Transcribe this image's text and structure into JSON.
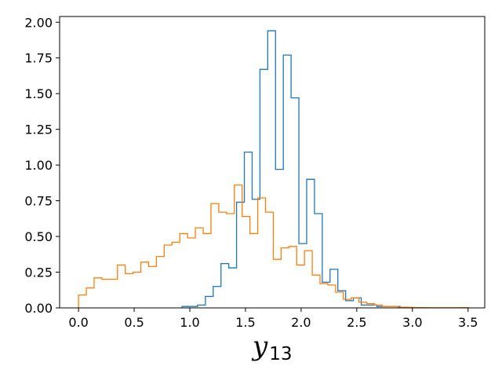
{
  "chart_data": {
    "type": "step-histogram",
    "xlabel": "y",
    "xlabel_subscript": "13",
    "ylabel": "",
    "title": "",
    "grid": false,
    "legend": "none",
    "xlim": [
      -0.17,
      3.65
    ],
    "ylim": [
      0,
      2.04
    ],
    "xticks": [
      0.0,
      0.5,
      1.0,
      1.5,
      2.0,
      2.5,
      3.0,
      3.5
    ],
    "xtick_labels": [
      "0.0",
      "0.5",
      "1.0",
      "1.5",
      "2.0",
      "2.5",
      "3.0",
      "3.5"
    ],
    "yticks": [
      0.0,
      0.25,
      0.5,
      0.75,
      1.0,
      1.25,
      1.5,
      1.75,
      2.0
    ],
    "ytick_labels": [
      "0.00",
      "0.25",
      "0.50",
      "0.75",
      "1.00",
      "1.25",
      "1.50",
      "1.75",
      "2.00"
    ],
    "series": [
      {
        "color": "#1f77b4",
        "edges": [
          0.93,
          1.0,
          1.07,
          1.14,
          1.21,
          1.28,
          1.35,
          1.42,
          1.49,
          1.56,
          1.63,
          1.7,
          1.77,
          1.84,
          1.91,
          1.98,
          2.05,
          2.12,
          2.19,
          2.26,
          2.33,
          2.4,
          2.47,
          2.54,
          2.61,
          2.68,
          2.75,
          2.82,
          2.89,
          2.96,
          3.03
        ],
        "values": [
          0.01,
          0.01,
          0.02,
          0.08,
          0.15,
          0.31,
          0.28,
          0.74,
          1.09,
          0.76,
          1.67,
          1.94,
          0.97,
          1.77,
          1.47,
          0.45,
          0.9,
          0.66,
          0.18,
          0.27,
          0.12,
          0.05,
          0.07,
          0.02,
          0.02,
          0.01,
          0.01,
          0.01,
          0.005,
          0.002
        ]
      },
      {
        "color": "#ff7f0e",
        "edges": [
          0.0,
          0.07,
          0.14,
          0.21,
          0.28,
          0.35,
          0.42,
          0.49,
          0.56,
          0.63,
          0.7,
          0.77,
          0.84,
          0.91,
          0.98,
          1.05,
          1.12,
          1.19,
          1.26,
          1.33,
          1.4,
          1.47,
          1.54,
          1.61,
          1.68,
          1.75,
          1.82,
          1.89,
          1.96,
          2.03,
          2.1,
          2.17,
          2.24,
          2.31,
          2.38,
          2.45,
          2.52,
          2.59,
          2.66,
          2.73,
          2.8,
          2.87,
          2.94,
          3.01,
          3.08,
          3.15,
          3.22,
          3.29,
          3.36,
          3.43,
          3.5
        ],
        "values": [
          0.09,
          0.14,
          0.21,
          0.2,
          0.2,
          0.3,
          0.24,
          0.25,
          0.32,
          0.29,
          0.36,
          0.44,
          0.46,
          0.52,
          0.49,
          0.56,
          0.52,
          0.73,
          0.67,
          0.66,
          0.86,
          0.64,
          0.52,
          0.77,
          0.67,
          0.34,
          0.42,
          0.43,
          0.3,
          0.4,
          0.23,
          0.17,
          0.16,
          0.11,
          0.06,
          0.07,
          0.04,
          0.03,
          0.02,
          0.01,
          0.01,
          0.005,
          0.004,
          0.002,
          0.002,
          0.001,
          0.001,
          0.001,
          0.001,
          0.002
        ]
      }
    ]
  }
}
